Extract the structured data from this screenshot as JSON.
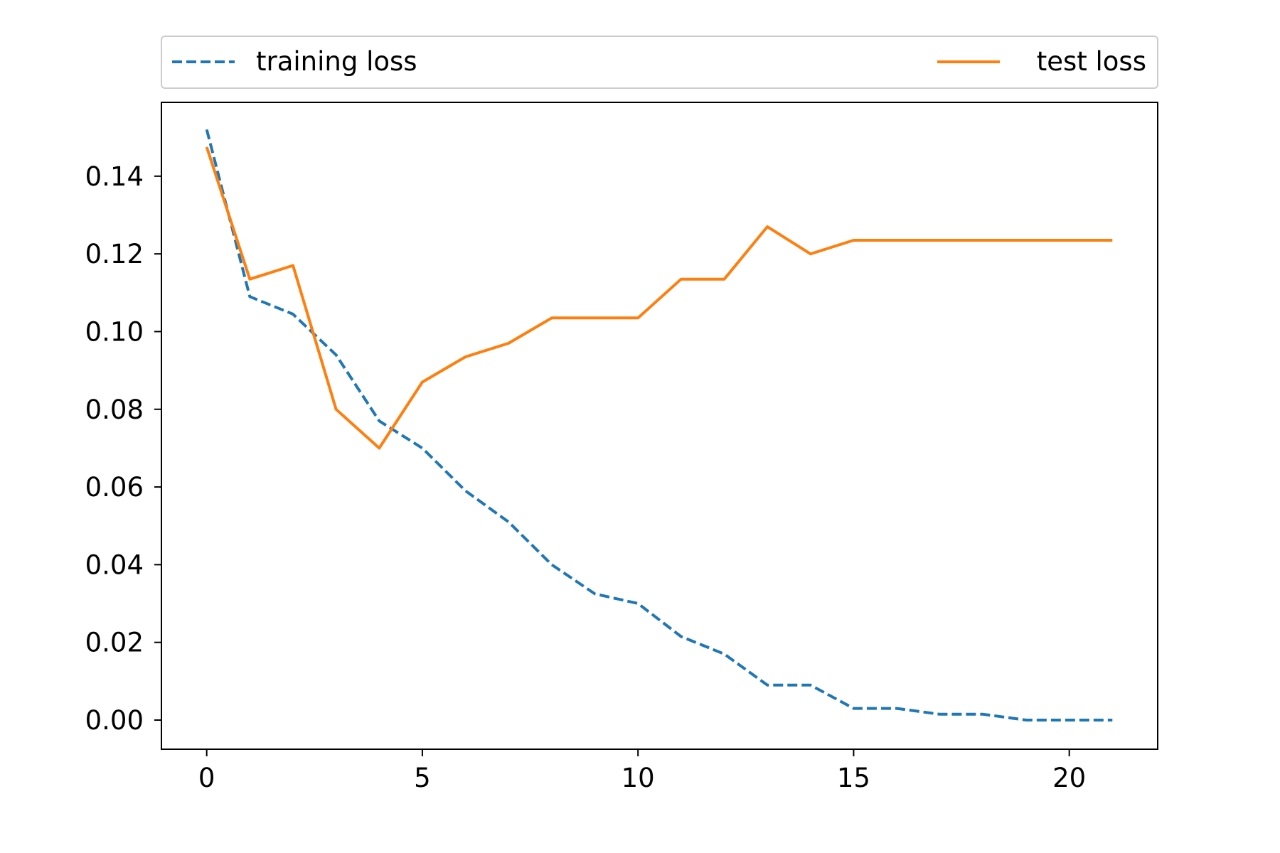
{
  "chart_data": {
    "type": "line",
    "title": "",
    "xlabel": "",
    "ylabel": "",
    "xlim": [
      -1.05,
      22.05
    ],
    "ylim": [
      -0.0075,
      0.159
    ],
    "x": [
      0,
      1,
      2,
      3,
      4,
      5,
      6,
      7,
      8,
      9,
      10,
      11,
      12,
      13,
      14,
      15,
      16,
      17,
      18,
      19,
      20,
      21
    ],
    "x_ticks": [
      0,
      5,
      10,
      15,
      20
    ],
    "x_tick_labels": [
      "0",
      "5",
      "10",
      "15",
      "20"
    ],
    "y_ticks": [
      0.0,
      0.02,
      0.04,
      0.06,
      0.08,
      0.1,
      0.12,
      0.14
    ],
    "y_tick_labels": [
      "0.00",
      "0.02",
      "0.04",
      "0.06",
      "0.08",
      "0.10",
      "0.12",
      "0.14"
    ],
    "grid": false,
    "legend_position": "top, above plot, spanning full width",
    "series": [
      {
        "name": "training loss",
        "color": "#1f77b4",
        "style": "dashed",
        "values": [
          0.152,
          0.109,
          0.1045,
          0.094,
          0.077,
          0.07,
          0.059,
          0.051,
          0.04,
          0.0325,
          0.03,
          0.0215,
          0.017,
          0.009,
          0.009,
          0.003,
          0.003,
          0.0015,
          0.0015,
          0.0,
          0.0,
          0.0
        ]
      },
      {
        "name": "test loss",
        "color": "#ff7f0e",
        "style": "solid",
        "values": [
          0.1475,
          0.1135,
          0.117,
          0.08,
          0.07,
          0.087,
          0.0935,
          0.097,
          0.1035,
          0.1035,
          0.1035,
          0.1135,
          0.1135,
          0.127,
          0.12,
          0.1235,
          0.1235,
          0.1235,
          0.1235,
          0.1235,
          0.1235,
          0.1235
        ]
      }
    ]
  }
}
